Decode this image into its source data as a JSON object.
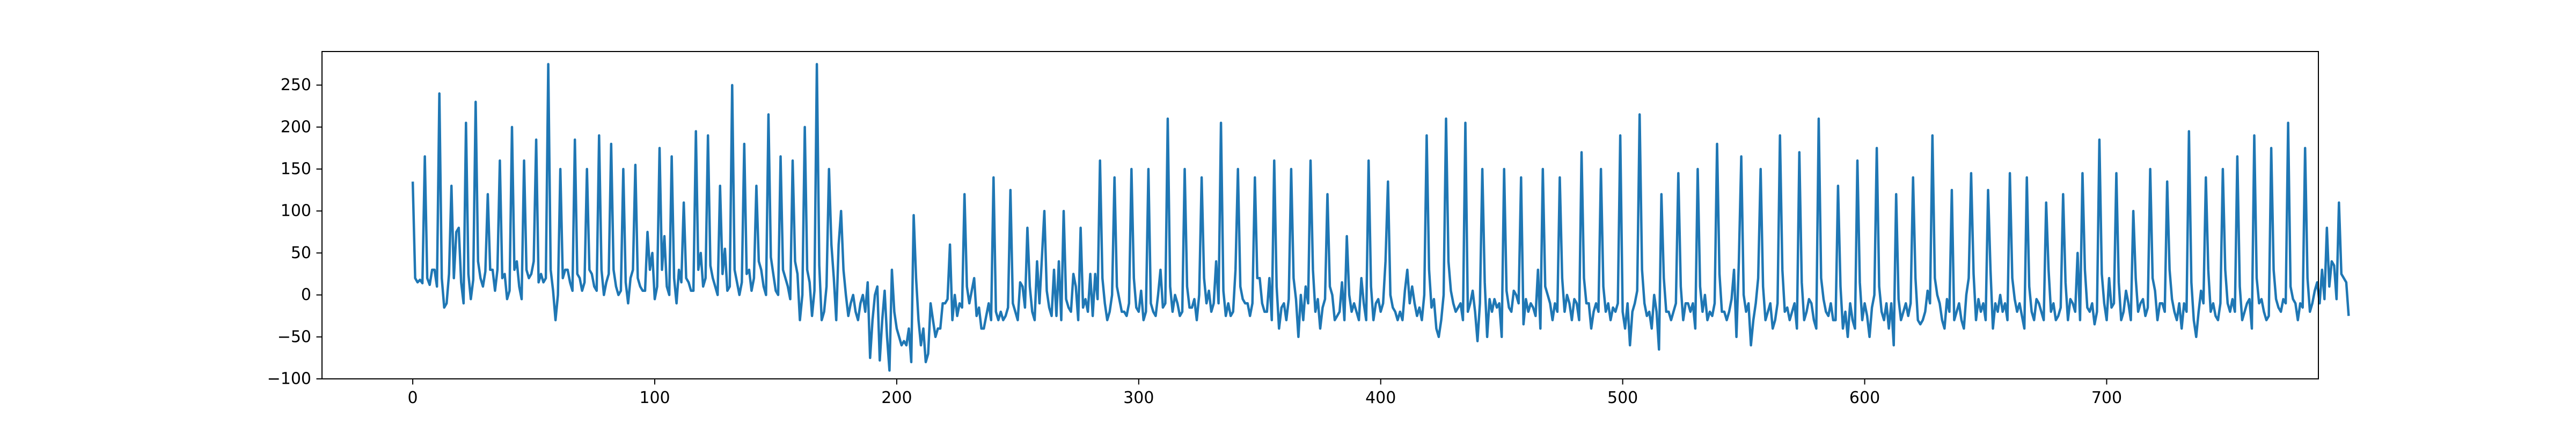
{
  "chart_data": {
    "type": "line",
    "title": "",
    "xlabel": "",
    "ylabel": "",
    "xlim": [
      -37.5,
      787.5
    ],
    "ylim": [
      -100,
      290
    ],
    "x_ticks": [
      0,
      100,
      200,
      300,
      400,
      500,
      600,
      700
    ],
    "y_ticks": [
      -100,
      -50,
      0,
      50,
      100,
      150,
      200,
      250
    ],
    "grid": false,
    "legend": "none",
    "series": [
      {
        "color": "#1f77b4",
        "x_start": 0,
        "x_step": 1,
        "values": [
          135,
          20,
          15,
          18,
          14,
          165,
          20,
          12,
          30,
          30,
          10,
          240,
          20,
          -15,
          -10,
          25,
          130,
          20,
          75,
          80,
          15,
          -10,
          205,
          25,
          -5,
          18,
          230,
          40,
          20,
          10,
          28,
          120,
          30,
          30,
          5,
          30,
          160,
          20,
          25,
          -5,
          5,
          200,
          30,
          40,
          10,
          -5,
          160,
          30,
          20,
          25,
          40,
          185,
          15,
          25,
          15,
          20,
          275,
          30,
          5,
          -30,
          0,
          150,
          20,
          30,
          30,
          15,
          5,
          185,
          25,
          20,
          5,
          15,
          150,
          30,
          25,
          10,
          5,
          190,
          30,
          0,
          15,
          25,
          180,
          30,
          10,
          0,
          5,
          150,
          15,
          -10,
          20,
          30,
          155,
          20,
          10,
          5,
          5,
          75,
          30,
          50,
          -5,
          10,
          175,
          30,
          70,
          10,
          0,
          165,
          20,
          -10,
          30,
          15,
          110,
          20,
          15,
          5,
          5,
          195,
          30,
          50,
          10,
          20,
          190,
          35,
          20,
          10,
          0,
          130,
          25,
          55,
          5,
          10,
          250,
          30,
          15,
          0,
          15,
          180,
          25,
          30,
          5,
          20,
          130,
          40,
          30,
          10,
          0,
          215,
          45,
          25,
          5,
          0,
          165,
          30,
          20,
          10,
          -5,
          160,
          40,
          25,
          -30,
          0,
          200,
          30,
          15,
          -25,
          5,
          275,
          35,
          -30,
          -20,
          10,
          150,
          60,
          20,
          -30,
          60,
          100,
          30,
          0,
          -25,
          -10,
          0,
          -20,
          -30,
          -10,
          0,
          -20,
          15,
          -75,
          -30,
          0,
          10,
          -78,
          -30,
          5,
          -50,
          -90,
          30,
          -20,
          -40,
          -50,
          -60,
          -55,
          -60,
          -40,
          -80,
          95,
          20,
          -30,
          -60,
          -40,
          -80,
          -70,
          -10,
          -30,
          -50,
          -40,
          -40,
          -10,
          -10,
          -5,
          60,
          -30,
          0,
          -25,
          -10,
          -15,
          120,
          10,
          -10,
          5,
          20,
          -25,
          -15,
          -40,
          -40,
          -25,
          -10,
          -30,
          140,
          -20,
          -30,
          -20,
          -30,
          -25,
          -15,
          125,
          -10,
          -20,
          -30,
          15,
          10,
          -15,
          80,
          10,
          -20,
          -30,
          40,
          -10,
          45,
          100,
          5,
          -15,
          -25,
          30,
          -25,
          40,
          -30,
          100,
          -5,
          -15,
          -20,
          25,
          10,
          -30,
          80,
          -15,
          -5,
          -20,
          25,
          -25,
          25,
          -5,
          160,
          20,
          -10,
          -30,
          -20,
          0,
          140,
          10,
          -5,
          -20,
          -20,
          -25,
          -10,
          150,
          20,
          -15,
          -20,
          5,
          -30,
          -20,
          150,
          -10,
          -20,
          -25,
          0,
          30,
          -15,
          -10,
          210,
          10,
          -20,
          0,
          -10,
          -25,
          -20,
          150,
          10,
          -15,
          -15,
          -5,
          -30,
          0,
          140,
          20,
          -10,
          5,
          -20,
          -10,
          40,
          -10,
          205,
          5,
          -25,
          -10,
          -25,
          -20,
          30,
          150,
          10,
          -5,
          -10,
          -10,
          -25,
          -10,
          140,
          20,
          20,
          -10,
          -20,
          -20,
          20,
          -30,
          160,
          10,
          -40,
          -15,
          -10,
          -30,
          -5,
          150,
          20,
          -5,
          -50,
          0,
          -30,
          10,
          -10,
          160,
          30,
          -20,
          -5,
          -40,
          -15,
          -5,
          120,
          10,
          0,
          -30,
          -25,
          -20,
          15,
          -30,
          70,
          0,
          -20,
          -10,
          -20,
          -30,
          20,
          -10,
          -30,
          160,
          10,
          -30,
          -10,
          -5,
          -20,
          -10,
          40,
          135,
          0,
          -15,
          -20,
          -30,
          -20,
          -30,
          5,
          30,
          -10,
          10,
          -10,
          -25,
          -15,
          -30,
          0,
          190,
          30,
          -15,
          -5,
          -40,
          -50,
          -30,
          0,
          210,
          40,
          5,
          -10,
          -20,
          -15,
          -10,
          -30,
          205,
          -20,
          -10,
          5,
          -20,
          -55,
          -10,
          150,
          15,
          -50,
          -5,
          -20,
          -5,
          -15,
          -10,
          -50,
          150,
          5,
          -15,
          -20,
          5,
          0,
          -10,
          140,
          -35,
          -5,
          -20,
          -10,
          -15,
          -25,
          30,
          -40,
          150,
          10,
          0,
          -10,
          -30,
          -10,
          -20,
          140,
          20,
          -20,
          0,
          -10,
          -30,
          -5,
          -10,
          -30,
          170,
          20,
          -10,
          -10,
          -40,
          -20,
          -10,
          -20,
          150,
          10,
          -20,
          -10,
          -30,
          -15,
          -20,
          -10,
          190,
          -20,
          -40,
          -10,
          -60,
          -20,
          -10,
          5,
          215,
          30,
          -10,
          -25,
          -20,
          -40,
          0,
          -20,
          -65,
          120,
          20,
          -20,
          -20,
          -30,
          -20,
          -10,
          145,
          10,
          -30,
          -10,
          -10,
          -20,
          -10,
          -40,
          150,
          10,
          -20,
          0,
          -30,
          -20,
          -25,
          -10,
          180,
          25,
          -20,
          -20,
          -30,
          -20,
          -5,
          30,
          -50,
          40,
          165,
          0,
          -20,
          -10,
          -60,
          -30,
          -10,
          20,
          150,
          10,
          -30,
          -20,
          -10,
          -40,
          -30,
          -10,
          190,
          30,
          -20,
          -15,
          -30,
          -20,
          -10,
          -40,
          170,
          15,
          -30,
          -20,
          -5,
          -10,
          -30,
          -40,
          210,
          20,
          -5,
          -20,
          -25,
          -10,
          -30,
          -30,
          130,
          10,
          -40,
          -20,
          -50,
          -10,
          -30,
          -40,
          160,
          15,
          -30,
          -10,
          -25,
          -50,
          -15,
          0,
          175,
          10,
          -20,
          -30,
          -10,
          -40,
          -10,
          -60,
          120,
          -5,
          -30,
          -20,
          -10,
          -25,
          -10,
          140,
          20,
          -30,
          -35,
          -30,
          -20,
          5,
          -10,
          190,
          20,
          0,
          -10,
          -30,
          -40,
          -5,
          -20,
          125,
          -30,
          -20,
          -10,
          -30,
          -40,
          0,
          20,
          145,
          25,
          -30,
          -5,
          -20,
          -10,
          -30,
          125,
          30,
          -40,
          -10,
          -20,
          0,
          -20,
          -10,
          -30,
          145,
          20,
          -5,
          -20,
          -10,
          -25,
          -40,
          140,
          10,
          -20,
          -30,
          -5,
          -10,
          -20,
          -30,
          110,
          30,
          -20,
          -10,
          -30,
          -25,
          -15,
          120,
          15,
          -30,
          -5,
          -10,
          -20,
          50,
          -30,
          145,
          30,
          -15,
          -20,
          -10,
          -35,
          -20,
          185,
          25,
          -10,
          -30,
          20,
          -15,
          -10,
          145,
          15,
          -30,
          -20,
          5,
          -10,
          -30,
          100,
          20,
          -20,
          -10,
          -5,
          -25,
          -15,
          150,
          20,
          5,
          -30,
          -10,
          -10,
          -20,
          135,
          30,
          -5,
          -20,
          -30,
          -10,
          -40,
          -10,
          -20,
          195,
          15,
          -30,
          -50,
          -20,
          5,
          -10,
          140,
          30,
          -20,
          -10,
          -25,
          -30,
          -10,
          150,
          30,
          -10,
          -20,
          -5,
          -20,
          165,
          10,
          -30,
          -20,
          -10,
          -5,
          -40,
          190,
          20,
          -10,
          -5,
          -20,
          -30,
          -25,
          175,
          30,
          -5,
          -15,
          -20,
          -5,
          -10,
          205,
          10,
          -5,
          -10,
          -30,
          -10,
          -15,
          175,
          20,
          -20,
          -10,
          5,
          15,
          -10,
          30,
          -5,
          80,
          10,
          40,
          35,
          -5,
          110,
          25,
          20,
          15,
          -25
        ]
      }
    ]
  }
}
